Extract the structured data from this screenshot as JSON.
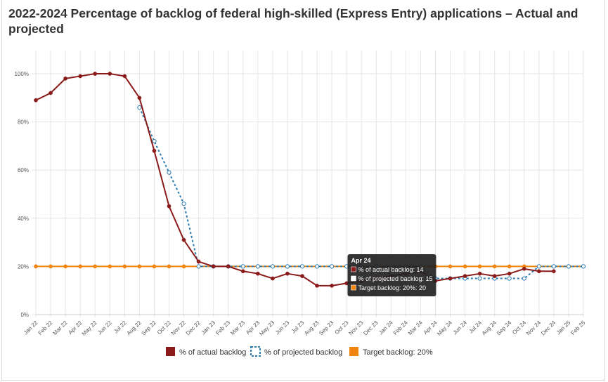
{
  "title": "2022-2024 Percentage of backlog of federal high-skilled (Express Entry) applications – Actual and projected",
  "colors": {
    "actual": "#8b1a1a",
    "projected": "#2e7bb0",
    "target": "#f0840c",
    "grid": "#e6e6e6",
    "tooltip_bg": "#222222"
  },
  "chart_data": {
    "type": "line",
    "title": "2022-2024 Percentage of backlog of federal high-skilled (Express Entry) applications – Actual and projected",
    "xlabel": "",
    "ylabel": "",
    "ylim": [
      0,
      100
    ],
    "ytick_values": [
      0,
      20,
      40,
      60,
      80,
      100
    ],
    "ytick_labels": [
      "0%",
      "20%",
      "40%",
      "60%",
      "80%",
      "100%"
    ],
    "categories": [
      "Jan 22",
      "Feb 22",
      "Mar 22",
      "Apr 22",
      "May 22",
      "Jun 22",
      "Jul 22",
      "Aug 22",
      "Sep 22",
      "Oct 22",
      "Nov 22",
      "Dec 22",
      "Jan 23",
      "Feb 23",
      "Mar 23",
      "Apr 23",
      "May 23",
      "Jun 23",
      "Jul 23",
      "Aug 23",
      "Sep 23",
      "Oct 23",
      "Nov 23",
      "Dec 23",
      "Jan 24",
      "Feb 24",
      "Mar 24",
      "Apr 24",
      "May 24",
      "Jun 24",
      "Jul 24",
      "Aug 24",
      "Sep 24",
      "Oct 24",
      "Nov 24",
      "Dec 24",
      "Jan 25",
      "Feb 25"
    ],
    "grid": true,
    "legend_position": "bottom",
    "series": [
      {
        "name": "% of actual backlog",
        "style": "solid",
        "values": [
          89,
          92,
          98,
          99,
          100,
          100,
          99,
          90,
          68,
          45,
          31,
          22,
          20,
          20,
          18,
          17,
          15,
          17,
          16,
          12,
          12,
          13,
          14,
          15,
          16,
          17,
          18,
          14,
          15,
          16,
          17,
          16,
          17,
          19,
          18,
          18,
          null,
          null
        ]
      },
      {
        "name": "% of projected backlog",
        "style": "dotted",
        "values": [
          null,
          null,
          null,
          null,
          null,
          null,
          null,
          86,
          72,
          59,
          46,
          20,
          20,
          20,
          20,
          20,
          20,
          20,
          20,
          20,
          20,
          20,
          20,
          20,
          20,
          20,
          20,
          15,
          15,
          15,
          15,
          15,
          15,
          15,
          20,
          20,
          20,
          20
        ]
      },
      {
        "name": "Target backlog: 20%",
        "style": "solid",
        "values": [
          20,
          20,
          20,
          20,
          20,
          20,
          20,
          20,
          20,
          20,
          20,
          20,
          20,
          20,
          20,
          20,
          20,
          20,
          20,
          20,
          20,
          20,
          20,
          20,
          20,
          20,
          20,
          20,
          20,
          20,
          20,
          20,
          20,
          20,
          20,
          20,
          20,
          20
        ]
      }
    ],
    "tooltip": {
      "title": "Apr 24",
      "lines": [
        "% of actual backlog: 14",
        "% of projected backlog: 15",
        "Target backlog: 20%: 20"
      ]
    }
  }
}
